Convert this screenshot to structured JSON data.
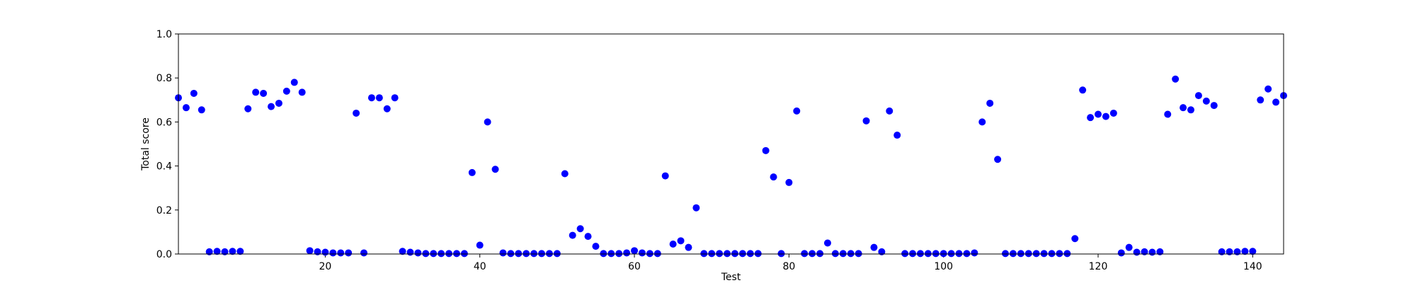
{
  "chart_data": {
    "type": "scatter",
    "title": "",
    "xlabel": "Test",
    "ylabel": "Total score",
    "xlim": [
      1,
      144
    ],
    "ylim": [
      0.0,
      1.0
    ],
    "x_ticks": [
      20,
      40,
      60,
      80,
      100,
      120,
      140
    ],
    "y_ticks": [
      0.0,
      0.2,
      0.4,
      0.6,
      0.8,
      1.0
    ],
    "x_tick_labels": [
      "20",
      "40",
      "60",
      "80",
      "100",
      "120",
      "140"
    ],
    "y_tick_labels": [
      "0.0",
      "0.2",
      "0.4",
      "0.6",
      "0.8",
      "1.0"
    ],
    "grid": false,
    "marker_color": "#0000ff",
    "series": [
      {
        "x": [
          1,
          2,
          3,
          4,
          5,
          6,
          7,
          8,
          9,
          10,
          11,
          12,
          13,
          14,
          15,
          16,
          17,
          18,
          19,
          20,
          21,
          22,
          23,
          24,
          25,
          26,
          27,
          28,
          29,
          30,
          31,
          32,
          33,
          34,
          35,
          36,
          37,
          38,
          39,
          40,
          41,
          42,
          43,
          44,
          45,
          46,
          47,
          48,
          49,
          50,
          51,
          52,
          53,
          54,
          55,
          56,
          57,
          58,
          59,
          60,
          61,
          62,
          63,
          64,
          65,
          66,
          67,
          68,
          69,
          70,
          71,
          72,
          73,
          74,
          75,
          76,
          77,
          78,
          79,
          80,
          81,
          82,
          83,
          84,
          85,
          86,
          87,
          88,
          89,
          90,
          91,
          92,
          93,
          94,
          95,
          96,
          97,
          98,
          99,
          100,
          101,
          102,
          103,
          104,
          105,
          106,
          107,
          108,
          109,
          110,
          111,
          112,
          113,
          114,
          115,
          116,
          117,
          118,
          119,
          120,
          121,
          122,
          123,
          124,
          125,
          126,
          127,
          128,
          129,
          130,
          131,
          132,
          133,
          134,
          135,
          136,
          137,
          138,
          139,
          140,
          141,
          142,
          143,
          144
        ],
        "y": [
          0.71,
          0.665,
          0.73,
          0.655,
          0.01,
          0.012,
          0.01,
          0.012,
          0.012,
          0.66,
          0.735,
          0.73,
          0.67,
          0.685,
          0.74,
          0.78,
          0.735,
          0.015,
          0.01,
          0.008,
          0.005,
          0.005,
          0.005,
          0.64,
          0.005,
          0.71,
          0.71,
          0.66,
          0.71,
          0.012,
          0.008,
          0.005,
          0.002,
          0.002,
          0.002,
          0.002,
          0.002,
          0.002,
          0.37,
          0.04,
          0.6,
          0.385,
          0.005,
          0.002,
          0.002,
          0.002,
          0.002,
          0.002,
          0.002,
          0.002,
          0.365,
          0.085,
          0.115,
          0.08,
          0.035,
          0.002,
          0.002,
          0.002,
          0.005,
          0.015,
          0.005,
          0.002,
          0.002,
          0.355,
          0.045,
          0.06,
          0.03,
          0.21,
          0.002,
          0.002,
          0.002,
          0.002,
          0.002,
          0.002,
          0.002,
          0.002,
          0.47,
          0.35,
          0.002,
          0.325,
          0.65,
          0.002,
          0.002,
          0.002,
          0.05,
          0.002,
          0.002,
          0.002,
          0.002,
          0.605,
          0.03,
          0.01,
          0.65,
          0.54,
          0.002,
          0.002,
          0.002,
          0.002,
          0.002,
          0.002,
          0.002,
          0.002,
          0.002,
          0.005,
          0.6,
          0.685,
          0.43,
          0.002,
          0.002,
          0.002,
          0.002,
          0.002,
          0.002,
          0.002,
          0.002,
          0.002,
          0.07,
          0.745,
          0.62,
          0.635,
          0.625,
          0.64,
          0.005,
          0.03,
          0.008,
          0.01,
          0.008,
          0.01,
          0.635,
          0.795,
          0.665,
          0.655,
          0.72,
          0.695,
          0.675,
          0.01,
          0.01,
          0.01,
          0.012,
          0.012,
          0.7,
          0.75,
          0.69,
          0.72
        ]
      }
    ]
  }
}
